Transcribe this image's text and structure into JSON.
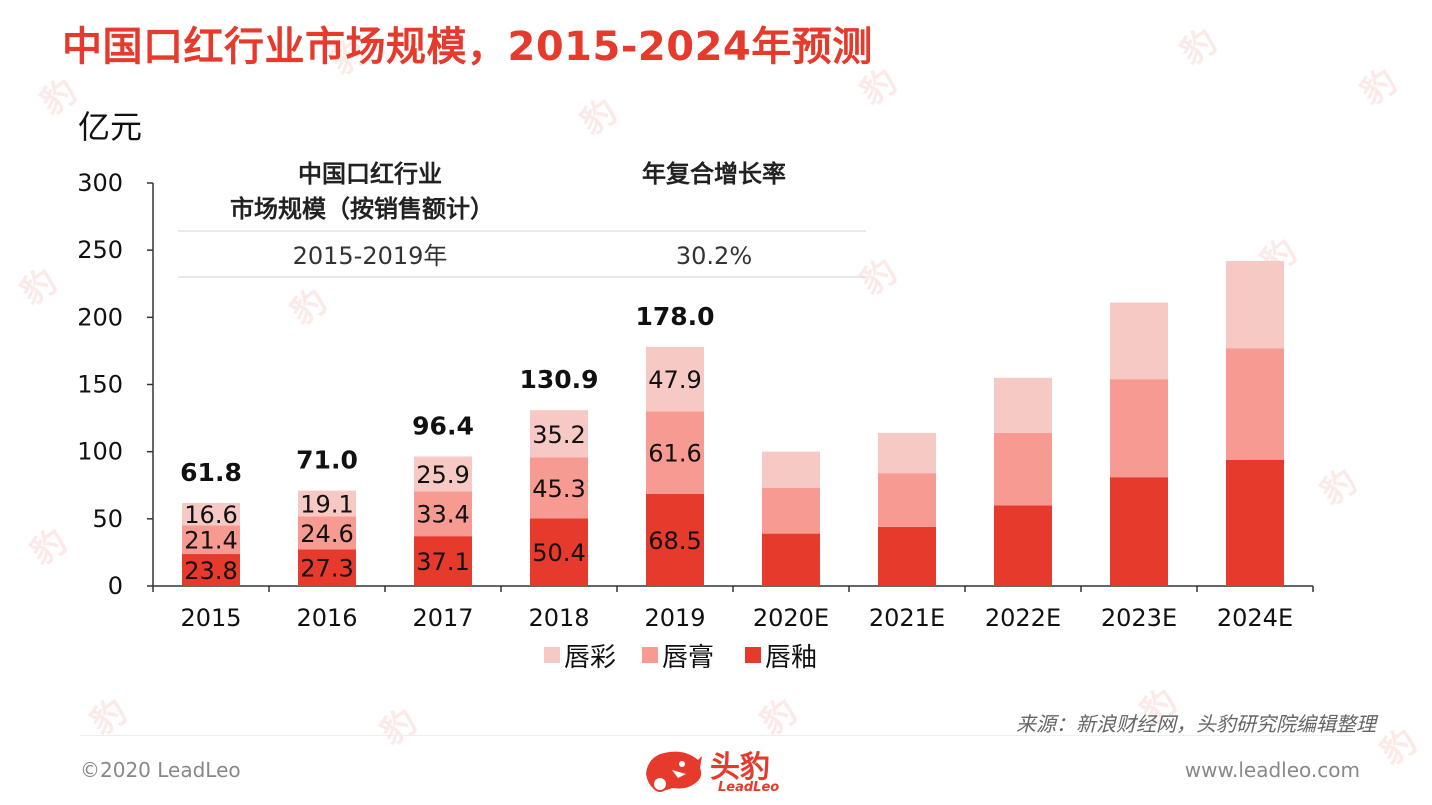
{
  "title": "中国口红行业市场规模，2015-2024年预测",
  "unit_label": "亿元",
  "inset_table": {
    "headers": [
      "中国口红行业\n市场规模（按销售额计）",
      "年复合增长率"
    ],
    "row": [
      "2015-2019年",
      "30.2%"
    ]
  },
  "colors": {
    "title": "#e53a2c",
    "唇釉": "#e53a2c",
    "唇膏": "#f79a91",
    "唇彩": "#f6c9c4"
  },
  "chart_data": {
    "type": "bar",
    "stacked": true,
    "categories": [
      "2015",
      "2016",
      "2017",
      "2018",
      "2019",
      "2020E",
      "2021E",
      "2022E",
      "2023E",
      "2024E"
    ],
    "series": [
      {
        "name": "唇釉",
        "values": [
          23.8,
          27.3,
          37.1,
          50.4,
          68.5,
          39,
          44,
          60,
          81,
          94
        ]
      },
      {
        "name": "唇膏",
        "values": [
          21.4,
          24.6,
          33.4,
          45.3,
          61.6,
          34,
          40,
          54,
          73,
          83
        ]
      },
      {
        "name": "唇彩",
        "values": [
          16.6,
          19.1,
          25.9,
          35.2,
          47.9,
          27,
          30,
          41,
          57,
          65
        ]
      }
    ],
    "segment_labels": [
      [
        "23.8",
        "21.4",
        "16.6"
      ],
      [
        "27.3",
        "24.6",
        "19.1"
      ],
      [
        "37.1",
        "33.4",
        "25.9"
      ],
      [
        "50.4",
        "45.3",
        "35.2"
      ],
      [
        "68.5",
        "61.6",
        "47.9"
      ],
      null,
      null,
      null,
      null,
      null
    ],
    "total_labels": [
      "61.8",
      "71.0",
      "96.4",
      "130.9",
      "178.0",
      null,
      null,
      null,
      null,
      null
    ],
    "ylim": [
      0,
      300
    ],
    "yticks": [
      0,
      50,
      100,
      150,
      200,
      250,
      300
    ],
    "legend": {
      "position": "bottom",
      "order": [
        "唇彩",
        "唇膏",
        "唇釉"
      ]
    },
    "grid": false
  },
  "source": "来源：新浪财经网，头豹研究院编辑整理",
  "footer": {
    "copyright": "©2020 LeadLeo",
    "website": "www.leadleo.com",
    "logo_cn": "头豹",
    "logo_en": "LeadLeo"
  }
}
